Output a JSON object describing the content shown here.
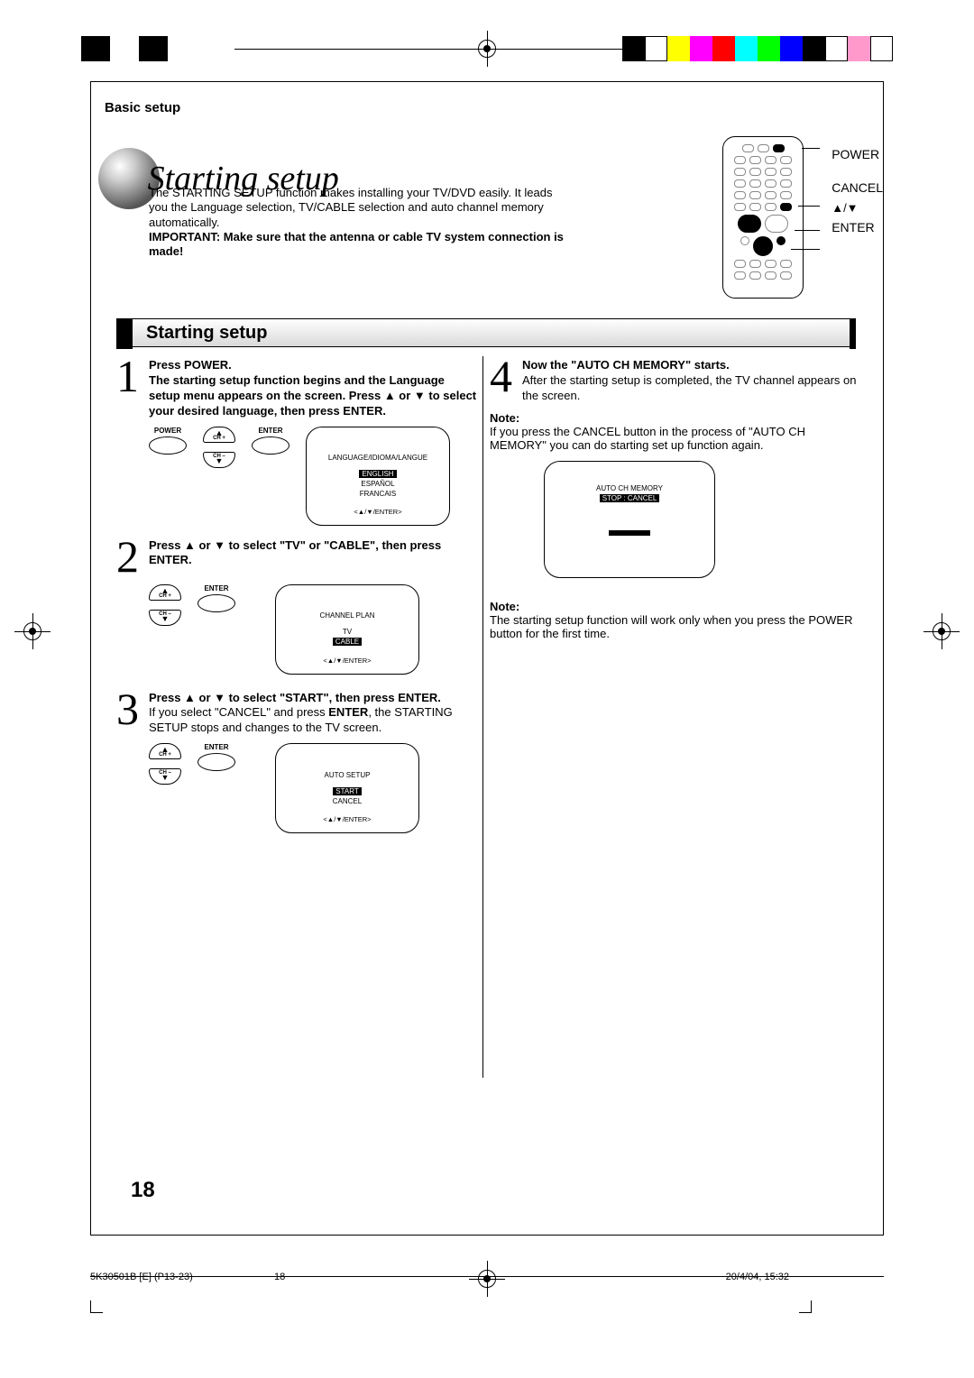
{
  "reg_colors": [
    "#000000",
    "#ffffff",
    "#ffff00",
    "#ff00ff",
    "#ff0000",
    "#00ffff",
    "#00ff00",
    "#0000ff",
    "#000000",
    "#ffffff",
    "#ff99cc",
    "#ffffff"
  ],
  "breadcrumb": "Basic setup",
  "header_title": "Starting setup",
  "intro_text": "The STARTING SETUP function makes installing your TV/DVD easily. It leads you the Language selection, TV/CABLE selection and auto channel memory automatically.",
  "intro_important": "IMPORTANT: Make sure that the antenna or cable TV system connection is made!",
  "remote_labels": {
    "power": "POWER",
    "cancel": "CANCEL",
    "updown": "▲/▼",
    "enter": "ENTER"
  },
  "section_heading": "Starting setup",
  "step1": {
    "num": "1",
    "text_bold_a": "Press POWER.",
    "text_bold_b": "The starting setup function begins and the Language setup menu appears on the screen. Press ▲ or ▼ to select your desired language, then press ENTER.",
    "btn_power": "POWER",
    "btn_enter": "ENTER",
    "ch_plus": "CH +",
    "ch_minus": "CH –",
    "screen_title": "LANGUAGE/IDIOMA/LANGUE",
    "opt1": "ENGLISH",
    "opt2": "ESPAÑOL",
    "opt3": "FRANCAIS",
    "screen_footer": "<▲/▼/ENTER>"
  },
  "step2": {
    "num": "2",
    "text_bold": "Press ▲ or ▼ to select \"TV\" or \"CABLE\", then press ENTER.",
    "btn_enter": "ENTER",
    "ch_plus": "CH +",
    "ch_minus": "CH –",
    "screen_title": "CHANNEL PLAN",
    "opt1": "TV",
    "opt2": "CABLE",
    "screen_footer": "<▲/▼/ENTER>"
  },
  "step3": {
    "num": "3",
    "text_bold": "Press ▲ or ▼ to select \"START\", then press ENTER.",
    "text_body_a": "If you select \"CANCEL\" and press ",
    "text_body_b": "ENTER",
    "text_body_c": ", the STARTING SETUP stops and changes to the TV screen.",
    "btn_enter": "ENTER",
    "ch_plus": "CH +",
    "ch_minus": "CH –",
    "screen_title": "AUTO SETUP",
    "opt1": "START",
    "opt2": "CANCEL",
    "screen_footer": "<▲/▼/ENTER>"
  },
  "step4": {
    "num": "4",
    "text_bold": "Now the \"AUTO CH MEMORY\" starts.",
    "text_body": "After the starting setup is completed, the TV channel appears on the screen.",
    "note_label": "Note:",
    "note_text": "If you press the CANCEL button in the process of \"AUTO CH MEMORY\" you can do starting set up function again.",
    "screen_title": "AUTO CH MEMORY",
    "screen_sub": "STOP : CANCEL"
  },
  "note2": {
    "label": "Note:",
    "text": "The starting setup function will work only when you press the POWER button for the first time."
  },
  "page_number": "18",
  "footer": {
    "doc": "5K30501B [E] (P13-23)",
    "pg": "18",
    "date": "20/4/04, 15:32"
  }
}
